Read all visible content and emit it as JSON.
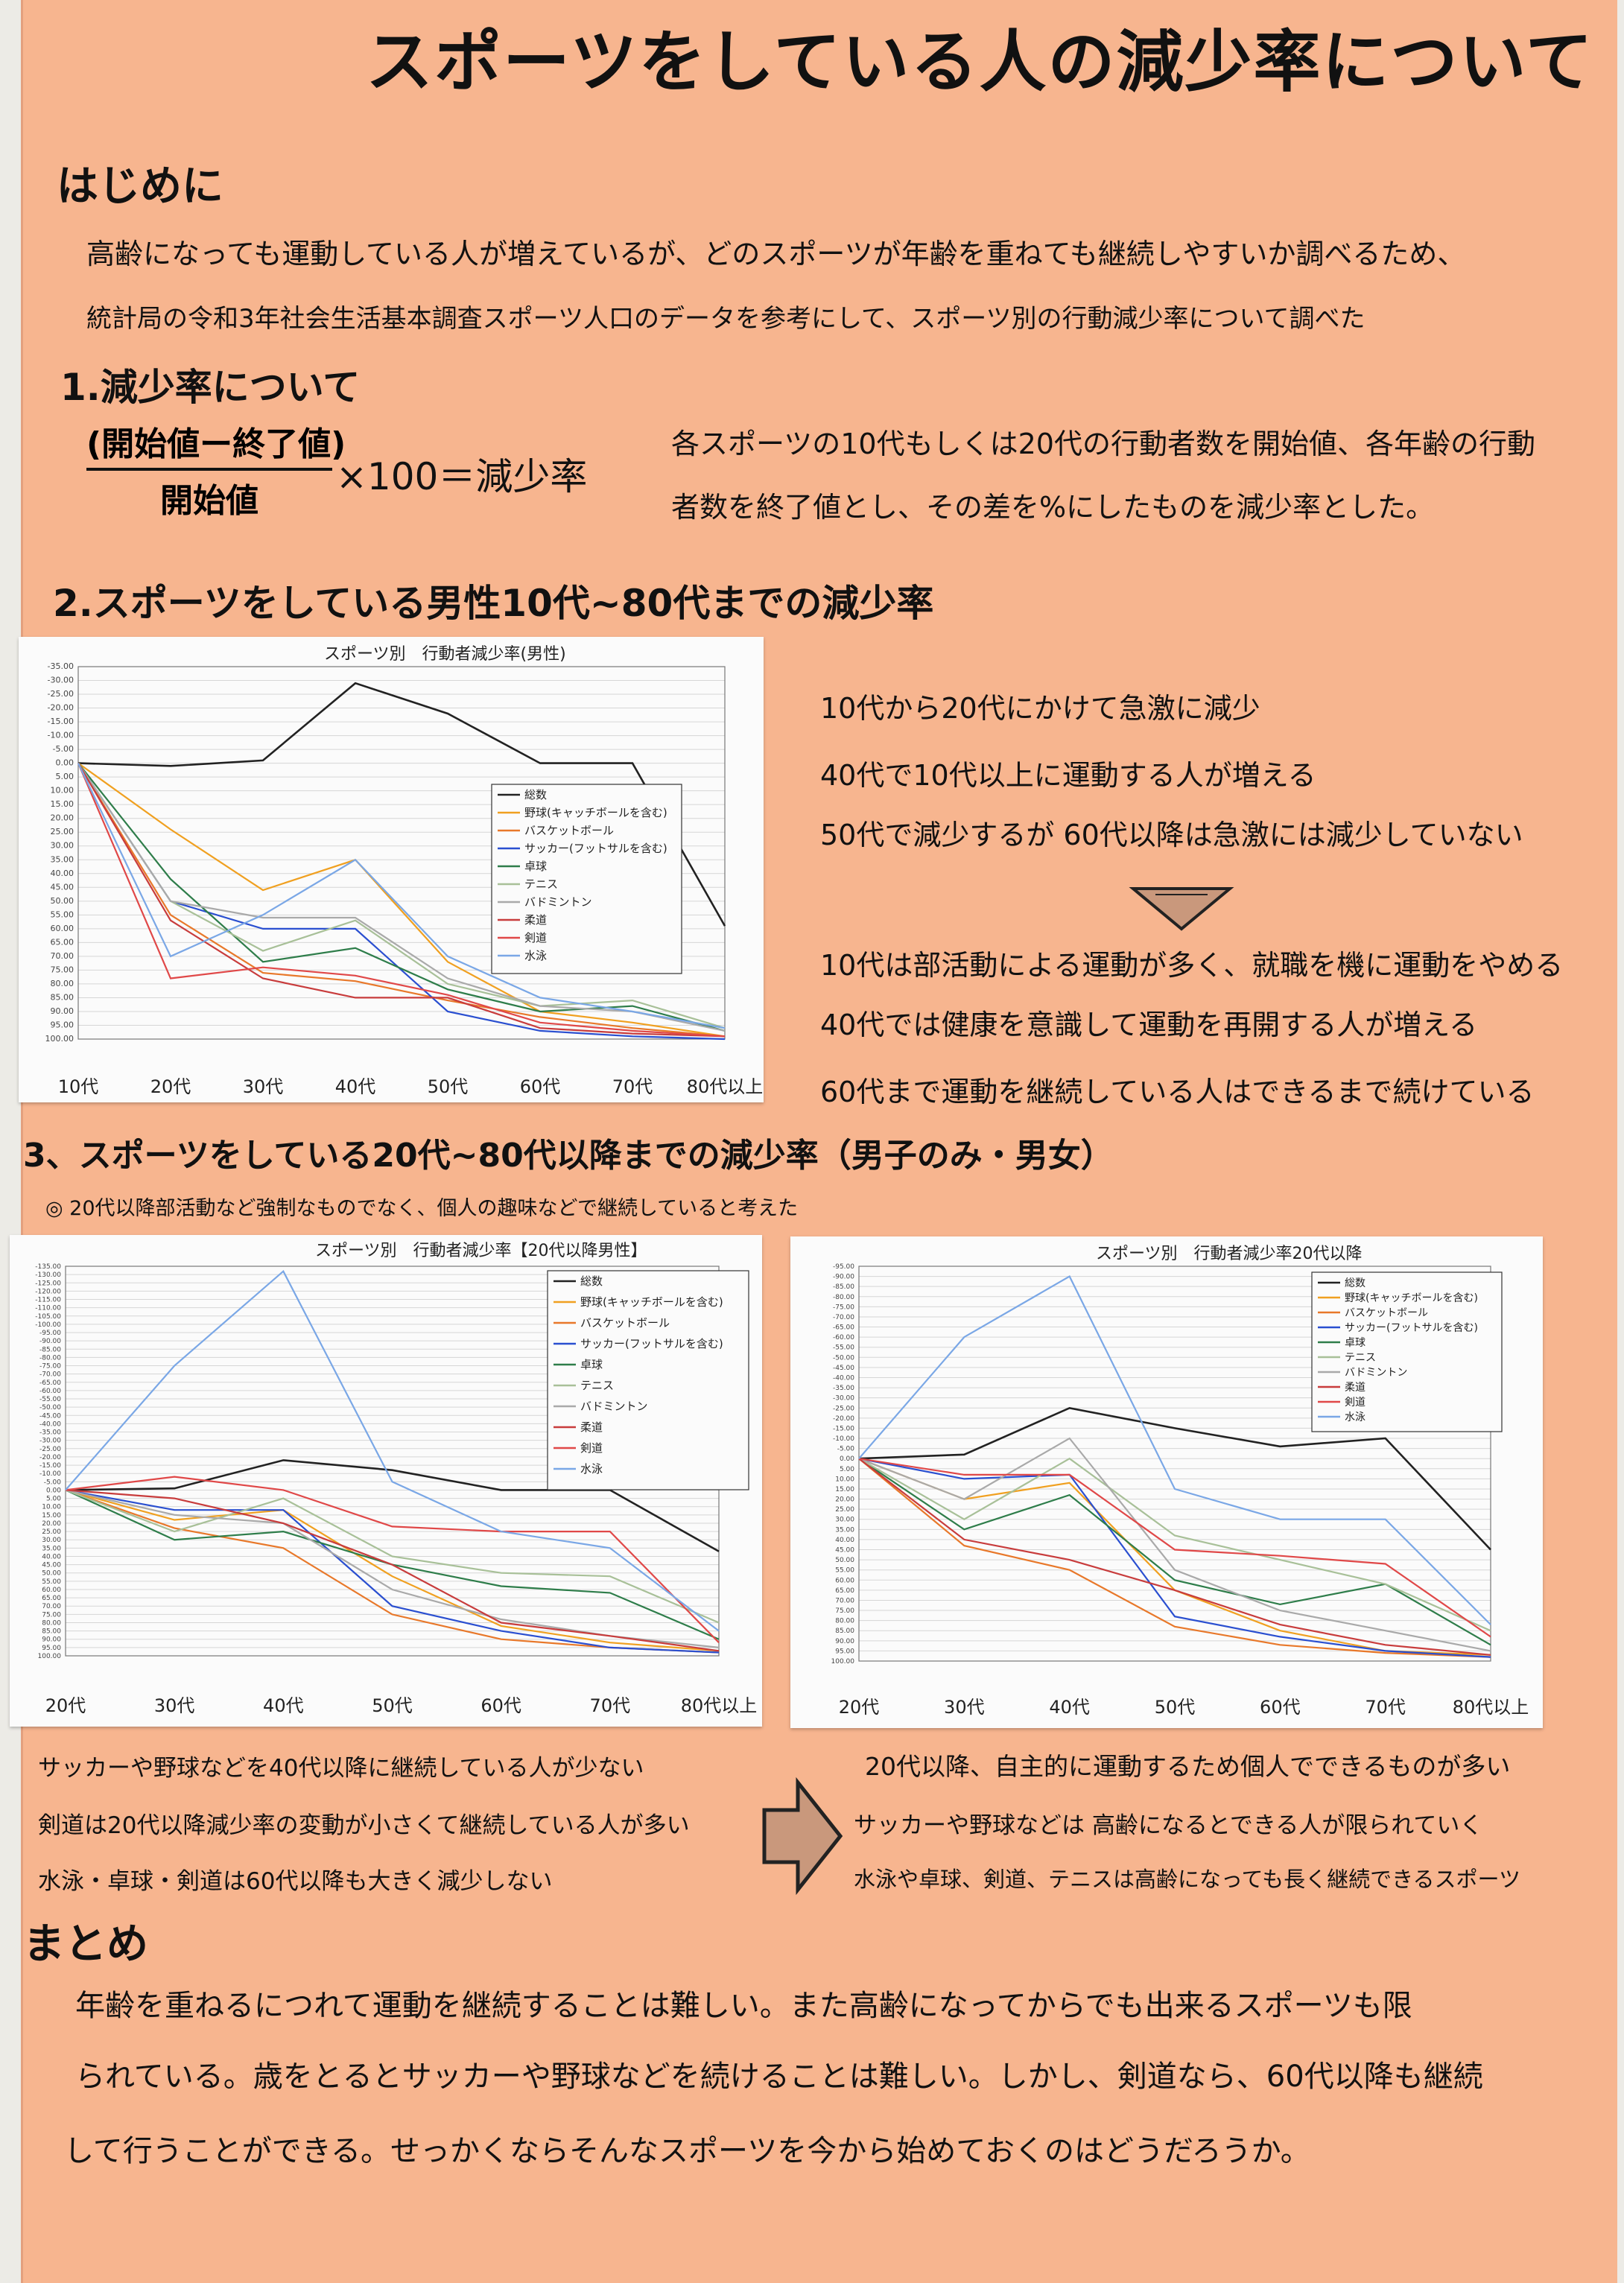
{
  "title": "スポーツをしている人の減少率について",
  "intro": {
    "heading": "はじめに",
    "line1": "高齢になっても運動している人が増えているが、どのスポーツが年齢を重ねても継続しやすいか調べるため、",
    "line2": "統計局の令和3年社会生活基本調査スポーツ人口のデータを参考にして、スポーツ別の行動減少率について調べた"
  },
  "section1": {
    "heading": "1.減少率について",
    "numerator": "(開始値ー終了値)",
    "denominator": "開始値",
    "formula_rhs": "×100＝減少率",
    "desc1": "各スポーツの10代もしくは20代の行動者数を開始値、各年齢の行動",
    "desc2": "者数を終了値とし、その差を%にしたものを減少率とした。"
  },
  "section2": {
    "heading": "2.スポーツをしている男性10代~80代までの減少率",
    "notes": [
      "10代から20代にかけて急激に減少",
      "40代で10代以上に運動する人が増える",
      "50代で減少するが 60代以降は急激には減少していない"
    ],
    "conclusions": [
      "10代は部活動による運動が多く、就職を機に運動をやめる",
      "40代では健康を意識して運動を再開する人が増える",
      "60代まで運動を継続している人はできるまで続けている"
    ]
  },
  "section3": {
    "heading": "3、スポーツをしている20代~80代以降までの減少率（男子のみ・男女）",
    "note": "◎ 20代以降部活動など強制なものでなく、個人の趣味などで継続していると考えた",
    "left_notes": [
      "サッカーや野球などを40代以降に継続している人が少ない",
      "剣道は20代以降減少率の変動が小さくて継続している人が多い",
      "水泳・卓球・剣道は60代以降も大きく減少しない"
    ],
    "right_notes": [
      "20代以降、自主的に運動するため個人でできるものが多い",
      "サッカーや野球などは 高齢になるとできる人が限られていく",
      "水泳や卓球、剣道、テニスは高齢になっても長く継続できるスポーツ"
    ]
  },
  "summary": {
    "heading": "まとめ",
    "line1": "年齢を重ねるにつれて運動を継続することは難しい。また高齢になってからでも出来るスポーツも限",
    "line2": "られている。歳をとるとサッカーや野球などを続けることは難しい。しかし、剣道なら、60代以降も継続",
    "line3": "して行うことができる。せっかくならそんなスポーツを今から始めておくのはどうだろうか。"
  },
  "colors": {
    "総数": "#222222",
    "野球(キャッチボールを含む)": "#f0a020",
    "バスケットボール": "#e8782a",
    "サッカー(フットサルを含む)": "#2a4fd0",
    "卓球": "#2e7d4a",
    "テニス": "#a8c098",
    "バドミントン": "#a9a9a9",
    "柔道": "#c83c3c",
    "剣道": "#e04848",
    "水泳": "#7aa7e6"
  },
  "chart_data": [
    {
      "type": "line",
      "title": "スポーツ別　行動者減少率(男性)",
      "categories": [
        "10代",
        "20代",
        "30代",
        "40代",
        "50代",
        "60代",
        "70代",
        "80代以上"
      ],
      "yticks": [
        "-35.00",
        "-30.00",
        "-25.00",
        "-20.00",
        "-15.00",
        "-10.00",
        "-5.00",
        "0.00",
        "5.00",
        "10.00",
        "15.00",
        "20.00",
        "25.00",
        "30.00",
        "35.00",
        "40.00",
        "45.00",
        "50.00",
        "55.00",
        "60.00",
        "65.00",
        "70.00",
        "75.00",
        "80.00",
        "85.00",
        "90.00",
        "95.00",
        "100.00"
      ],
      "ylim": [
        -35,
        100
      ],
      "y_inverted": true,
      "grid": true,
      "legend": "right",
      "series": [
        {
          "name": "総数",
          "values": [
            0,
            1,
            -1,
            -29,
            -18,
            0,
            0,
            59
          ]
        },
        {
          "name": "野球(キャッチボールを含む)",
          "values": [
            0,
            24,
            46,
            35,
            72,
            90,
            94,
            99
          ]
        },
        {
          "name": "バスケットボール",
          "values": [
            0,
            55,
            76,
            79,
            86,
            92,
            96,
            99
          ]
        },
        {
          "name": "サッカー(フットサルを含む)",
          "values": [
            0,
            50,
            60,
            60,
            90,
            97,
            99,
            100
          ]
        },
        {
          "name": "卓球",
          "values": [
            0,
            42,
            72,
            67,
            82,
            90,
            88,
            97
          ]
        },
        {
          "name": "テニス",
          "values": [
            0,
            50,
            68,
            57,
            80,
            88,
            86,
            96
          ]
        },
        {
          "name": "バドミントン",
          "values": [
            0,
            50,
            56,
            56,
            78,
            88,
            90,
            97
          ]
        },
        {
          "name": "柔道",
          "values": [
            0,
            57,
            78,
            85,
            85,
            96,
            98,
            99
          ]
        },
        {
          "name": "剣道",
          "values": [
            0,
            78,
            74,
            77,
            84,
            94,
            97,
            99
          ]
        },
        {
          "name": "水泳",
          "values": [
            0,
            70,
            55,
            35,
            70,
            85,
            90,
            96
          ]
        }
      ]
    },
    {
      "type": "line",
      "title": "スポーツ別　行動者減少率【20代以降男性】",
      "categories": [
        "20代",
        "30代",
        "40代",
        "50代",
        "60代",
        "70代",
        "80代以上"
      ],
      "yticks": [
        "-135.00",
        "-130.00",
        "-125.00",
        "-120.00",
        "-115.00",
        "-110.00",
        "-105.00",
        "-100.00",
        "-95.00",
        "-90.00",
        "-85.00",
        "-80.00",
        "-75.00",
        "-70.00",
        "-65.00",
        "-60.00",
        "-55.00",
        "-50.00",
        "-45.00",
        "-40.00",
        "-35.00",
        "-30.00",
        "-25.00",
        "-20.00",
        "-15.00",
        "-10.00",
        "-5.00",
        "0.00",
        "5.00",
        "10.00",
        "15.00",
        "20.00",
        "25.00",
        "30.00",
        "35.00",
        "40.00",
        "45.00",
        "50.00",
        "55.00",
        "60.00",
        "65.00",
        "70.00",
        "75.00",
        "80.00",
        "85.00",
        "90.00",
        "95.00",
        "100.00"
      ],
      "ylim": [
        -135,
        100
      ],
      "y_inverted": true,
      "grid": true,
      "legend": "right",
      "series": [
        {
          "name": "総数",
          "values": [
            0,
            -1,
            -18,
            -12,
            0,
            0,
            37
          ]
        },
        {
          "name": "野球(キャッチボールを含む)",
          "values": [
            0,
            18,
            12,
            52,
            82,
            92,
            97
          ]
        },
        {
          "name": "バスケットボール",
          "values": [
            0,
            23,
            35,
            75,
            90,
            95,
            98
          ]
        },
        {
          "name": "サッカー(フットサルを含む)",
          "values": [
            0,
            12,
            12,
            70,
            85,
            95,
            98
          ]
        },
        {
          "name": "卓球",
          "values": [
            0,
            30,
            25,
            45,
            58,
            62,
            90
          ]
        },
        {
          "name": "テニス",
          "values": [
            0,
            25,
            5,
            40,
            50,
            52,
            80
          ]
        },
        {
          "name": "バドミントン",
          "values": [
            0,
            15,
            20,
            60,
            78,
            88,
            95
          ]
        },
        {
          "name": "柔道",
          "values": [
            0,
            5,
            20,
            45,
            80,
            88,
            97
          ]
        },
        {
          "name": "剣道",
          "values": [
            0,
            -8,
            0,
            22,
            25,
            25,
            92
          ]
        },
        {
          "name": "水泳",
          "values": [
            0,
            -75,
            -132,
            -5,
            25,
            35,
            85
          ]
        }
      ]
    },
    {
      "type": "line",
      "title": "スポーツ別　行動者減少率20代以降",
      "categories": [
        "20代",
        "30代",
        "40代",
        "50代",
        "60代",
        "70代",
        "80代以上"
      ],
      "yticks": [
        "-95.00",
        "-90.00",
        "-85.00",
        "-80.00",
        "-75.00",
        "-70.00",
        "-65.00",
        "-60.00",
        "-55.00",
        "-50.00",
        "-45.00",
        "-40.00",
        "-35.00",
        "-30.00",
        "-25.00",
        "-20.00",
        "-15.00",
        "-10.00",
        "-5.00",
        "0.00",
        "5.00",
        "10.00",
        "15.00",
        "20.00",
        "25.00",
        "30.00",
        "35.00",
        "40.00",
        "45.00",
        "50.00",
        "55.00",
        "60.00",
        "65.00",
        "70.00",
        "75.00",
        "80.00",
        "85.00",
        "90.00",
        "95.00",
        "100.00"
      ],
      "ylim": [
        -95,
        100
      ],
      "y_inverted": true,
      "grid": true,
      "legend": "right",
      "series": [
        {
          "name": "総数",
          "values": [
            0,
            -2,
            -25,
            -15,
            -6,
            -10,
            45
          ]
        },
        {
          "name": "野球(キャッチボールを含む)",
          "values": [
            0,
            20,
            12,
            65,
            85,
            95,
            97
          ]
        },
        {
          "name": "バスケットボール",
          "values": [
            0,
            43,
            55,
            83,
            92,
            96,
            98
          ]
        },
        {
          "name": "サッカー(フットサルを含む)",
          "values": [
            0,
            10,
            8,
            78,
            88,
            95,
            98
          ]
        },
        {
          "name": "卓球",
          "values": [
            0,
            35,
            18,
            60,
            72,
            62,
            92
          ]
        },
        {
          "name": "テニス",
          "values": [
            0,
            30,
            0,
            38,
            50,
            62,
            85
          ]
        },
        {
          "name": "バドミントン",
          "values": [
            0,
            20,
            -10,
            55,
            75,
            85,
            95
          ]
        },
        {
          "name": "柔道",
          "values": [
            0,
            40,
            50,
            65,
            82,
            92,
            97
          ]
        },
        {
          "name": "剣道",
          "values": [
            0,
            8,
            8,
            45,
            48,
            52,
            88
          ]
        },
        {
          "name": "水泳",
          "values": [
            0,
            -60,
            -90,
            15,
            30,
            30,
            82
          ]
        }
      ]
    }
  ]
}
